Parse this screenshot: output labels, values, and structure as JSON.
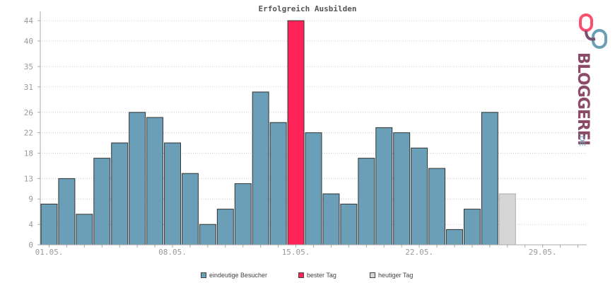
{
  "chart_data": {
    "type": "bar",
    "title": "Erfolgreich Ausbilden",
    "xlabel": "",
    "ylabel": "",
    "ylim": [
      0,
      45
    ],
    "y_ticks": [
      0,
      4,
      9,
      13,
      18,
      22,
      26,
      31,
      35,
      40,
      44
    ],
    "x_tick_labels": [
      {
        "day": 1,
        "label": "01.05."
      },
      {
        "day": 8,
        "label": "08.05."
      },
      {
        "day": 15,
        "label": "15.05."
      },
      {
        "day": 22,
        "label": "22.05."
      },
      {
        "day": 29,
        "label": "29.05."
      }
    ],
    "days": 31,
    "values": [
      8,
      13,
      6,
      17,
      20,
      26,
      25,
      20,
      14,
      4,
      7,
      12,
      30,
      24,
      44,
      22,
      10,
      8,
      17,
      23,
      22,
      19,
      15,
      3,
      7,
      26,
      10
    ],
    "highlight": {
      "best_day_index": 14,
      "today_index": 26
    },
    "grid": true,
    "legend_position": "bottom",
    "colors": {
      "bar": "#6a9fb7",
      "best": "#ff2457",
      "today": "#d6d6d6",
      "grid": "#cccccc",
      "axis": "#aaaaaa"
    }
  },
  "legend": {
    "items": [
      {
        "label": "eindeutige Besucher",
        "color": "#6a9fb7"
      },
      {
        "label": "bester Tag",
        "color": "#ff2457"
      },
      {
        "label": "heutiger Tag",
        "color": "#d6d6d6"
      }
    ]
  },
  "logo": {
    "text": "BLOGGEREI",
    "suffix": ".DE",
    "icon": "bloggerei-logo-icon"
  }
}
